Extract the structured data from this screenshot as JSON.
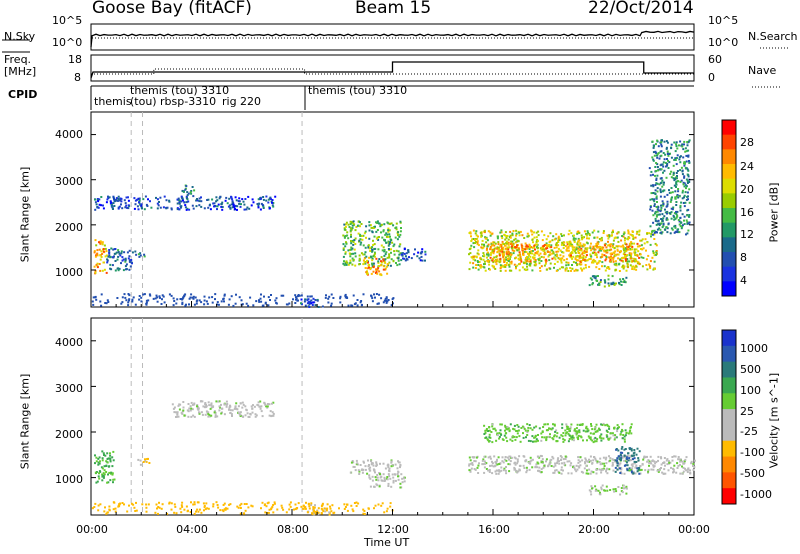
{
  "header": {
    "station": "Goose Bay (fitACF)",
    "beam": "Beam 15",
    "date": "22/Oct/2014"
  },
  "noise_panel": {
    "left_label": "N.Sky",
    "right_label": "N.Search",
    "left_ticks": [
      "10^5",
      "10^0"
    ],
    "right_ticks": [
      "10^5",
      "10^0"
    ]
  },
  "freq_panel": {
    "left_label_1": "Freq.",
    "left_label_2": "[MHz]",
    "right_label": "Nave",
    "left_ticks": [
      "18",
      "8"
    ],
    "right_ticks": [
      "60",
      "0"
    ]
  },
  "cpid": {
    "label": "CPID",
    "entries": [
      "themis",
      "themis (tou) 3310",
      "(tou)",
      "rbsp-3310",
      "rig 220",
      "themis (tou) 3310"
    ]
  },
  "axes": {
    "xlabel": "Time UT",
    "ylabel_1": "Slant Range [km]",
    "ylabel_2": "Slant Range [km]",
    "x_ticks": [
      "00:00",
      "04:00",
      "08:00",
      "12:00",
      "16:00",
      "20:00",
      "00:00"
    ],
    "y_ticks": [
      "4000",
      "3000",
      "2000",
      "1000"
    ]
  },
  "colorbars": {
    "power": {
      "label": "Power [dB]",
      "ticks": [
        "28",
        "24",
        "20",
        "16",
        "12",
        "8",
        "4"
      ],
      "colors": [
        "#ff0000",
        "#ff4400",
        "#ff8800",
        "#ffbb00",
        "#dddd00",
        "#99cc00",
        "#44bb44",
        "#229966",
        "#1a6a8a",
        "#224fb0",
        "#1a33e0",
        "#0000ff"
      ]
    },
    "velocity": {
      "label": "Velocity [m s^-1]",
      "ticks": [
        "1000",
        "500",
        "100",
        "25",
        "-25",
        "-100",
        "-500",
        "-1000"
      ],
      "colors": [
        "#1a33cc",
        "#2a58b0",
        "#2a7a7a",
        "#3aa850",
        "#66cc33",
        "#bbbbbb",
        "#bbbbbb",
        "#ffbb00",
        "#ff8800",
        "#ff5500",
        "#ff0000"
      ]
    }
  },
  "chart_data": [
    {
      "type": "heatmap",
      "title": "Power",
      "xlabel": "Time UT",
      "ylabel": "Slant Range [km]",
      "xlim_hours": [
        0,
        24
      ],
      "ylim_km": [
        180,
        4500
      ],
      "colorbar_label": "Power [dB]",
      "colorbar_range": [
        0,
        30
      ],
      "regions": [
        {
          "t0": 0.1,
          "t1": 0.6,
          "r0": 900,
          "r1": 1700,
          "level": 22
        },
        {
          "t0": 0.6,
          "t1": 1.6,
          "r0": 1000,
          "r1": 1500,
          "level": 8
        },
        {
          "t0": 1.6,
          "t1": 2.1,
          "r0": 1300,
          "r1": 1450,
          "level": 10
        },
        {
          "t0": 0.1,
          "t1": 7.3,
          "r0": 2350,
          "r1": 2650,
          "level": 6
        },
        {
          "t0": 3.6,
          "t1": 4.1,
          "r0": 2600,
          "r1": 2900,
          "level": 10
        },
        {
          "t0": 8.2,
          "t1": 9.2,
          "r0": 200,
          "r1": 400,
          "level": 6
        },
        {
          "t0": 10.0,
          "t1": 12.3,
          "r0": 1100,
          "r1": 2100,
          "level": 14
        },
        {
          "t0": 10.8,
          "t1": 11.8,
          "r0": 900,
          "r1": 1300,
          "level": 22
        },
        {
          "t0": 12.3,
          "t1": 13.3,
          "r0": 1200,
          "r1": 1500,
          "level": 6
        },
        {
          "t0": 15.0,
          "t1": 22.5,
          "r0": 1000,
          "r1": 1900,
          "level": 18
        },
        {
          "t0": 15.6,
          "t1": 21.8,
          "r0": 1200,
          "r1": 1600,
          "level": 22
        },
        {
          "t0": 19.8,
          "t1": 21.3,
          "r0": 650,
          "r1": 900,
          "level": 12
        },
        {
          "t0": 22.2,
          "t1": 23.8,
          "r0": 1800,
          "r1": 3900,
          "level": 10
        }
      ]
    },
    {
      "type": "heatmap",
      "title": "Velocity",
      "xlabel": "Time UT",
      "ylabel": "Slant Range [km]",
      "xlim_hours": [
        0,
        24
      ],
      "ylim_km": [
        180,
        4500
      ],
      "colorbar_label": "Velocity [m s^-1]",
      "colorbar_range": [
        -1000,
        1000
      ],
      "regions": [
        {
          "t0": 0.1,
          "t1": 0.9,
          "r0": 900,
          "r1": 1600,
          "level": 300
        },
        {
          "t0": 1.8,
          "t1": 2.3,
          "r0": 1300,
          "r1": 1450,
          "level": -300
        },
        {
          "t0": 3.2,
          "t1": 7.3,
          "r0": 2350,
          "r1": 2700,
          "level": 0
        },
        {
          "t0": 10.3,
          "t1": 12.3,
          "r0": 1100,
          "r1": 1400,
          "level": 0
        },
        {
          "t0": 11.0,
          "t1": 12.5,
          "r0": 800,
          "r1": 1100,
          "level": 0
        },
        {
          "t0": 15.6,
          "t1": 21.5,
          "r0": 1800,
          "r1": 2200,
          "level": 200
        },
        {
          "t0": 15.0,
          "t1": 24.0,
          "r0": 1100,
          "r1": 1500,
          "level": 0
        },
        {
          "t0": 20.8,
          "t1": 21.8,
          "r0": 1100,
          "r1": 1700,
          "level": 600
        },
        {
          "t0": 19.8,
          "t1": 21.3,
          "r0": 650,
          "r1": 850,
          "level": 60
        },
        {
          "t0": 8.5,
          "t1": 9.5,
          "r0": 200,
          "r1": 450,
          "level": -300
        }
      ]
    }
  ]
}
